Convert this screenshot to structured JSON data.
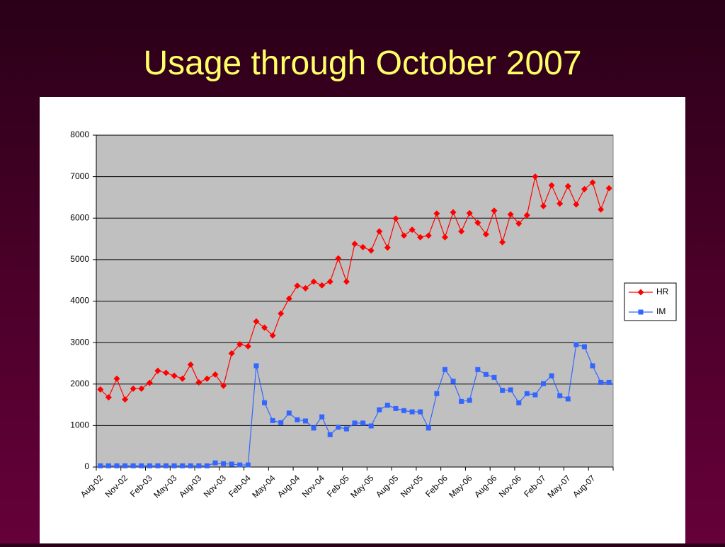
{
  "chart_data": {
    "type": "line",
    "title": "Usage through October 2007",
    "categories": [
      "Aug-02",
      null,
      null,
      "Nov-02",
      null,
      null,
      "Feb-03",
      null,
      null,
      "May-03",
      null,
      null,
      "Aug-03",
      null,
      null,
      "Nov-03",
      null,
      null,
      "Feb-04",
      null,
      null,
      "May-04",
      null,
      null,
      "Aug-04",
      null,
      null,
      "Nov-04",
      null,
      null,
      "Feb-05",
      null,
      null,
      "May-05",
      null,
      null,
      "Aug-05",
      null,
      null,
      "Nov-05",
      null,
      null,
      "Feb-06",
      null,
      null,
      "May-06",
      null,
      null,
      "Aug-06",
      null,
      null,
      "Nov-06",
      null,
      null,
      "Feb-07",
      null,
      null,
      "May-07",
      null,
      null,
      "Aug-07",
      null,
      null
    ],
    "series": [
      {
        "name": "HR",
        "color": "#ff0000",
        "marker": "diamond",
        "values": [
          1870,
          1680,
          2130,
          1630,
          1890,
          1890,
          2030,
          2320,
          2270,
          2200,
          2130,
          2470,
          2040,
          2130,
          2230,
          1960,
          2740,
          2960,
          2910,
          3510,
          3360,
          3170,
          3700,
          4060,
          4370,
          4310,
          4470,
          4380,
          4470,
          5030,
          4470,
          5380,
          5300,
          5220,
          5680,
          5290,
          5990,
          5580,
          5720,
          5540,
          5580,
          6110,
          5540,
          6140,
          5680,
          6120,
          5890,
          5610,
          6180,
          5420,
          6090,
          5870,
          6070,
          7000,
          6290,
          6790,
          6350,
          6770,
          6330,
          6700,
          6860,
          6210,
          6720
        ]
      },
      {
        "name": "IM",
        "color": "#3366ff",
        "marker": "square",
        "values": [
          30,
          30,
          30,
          30,
          30,
          30,
          30,
          30,
          30,
          30,
          30,
          30,
          30,
          30,
          100,
          80,
          70,
          50,
          50,
          2440,
          1550,
          1120,
          1070,
          1300,
          1140,
          1110,
          940,
          1210,
          780,
          960,
          920,
          1060,
          1060,
          990,
          1380,
          1490,
          1410,
          1360,
          1330,
          1330,
          940,
          1770,
          2350,
          2070,
          1580,
          1610,
          2350,
          2230,
          2160,
          1850,
          1860,
          1550,
          1770,
          1740,
          2010,
          2200,
          1720,
          1640,
          2950,
          2900,
          2440,
          2040,
          2040
        ]
      }
    ],
    "ylim": [
      0,
      8000
    ],
    "yticks": [
      0,
      1000,
      2000,
      3000,
      4000,
      5000,
      6000,
      7000,
      8000
    ],
    "grid": true,
    "legend": "right",
    "plot_background": "#c0c0c0"
  }
}
